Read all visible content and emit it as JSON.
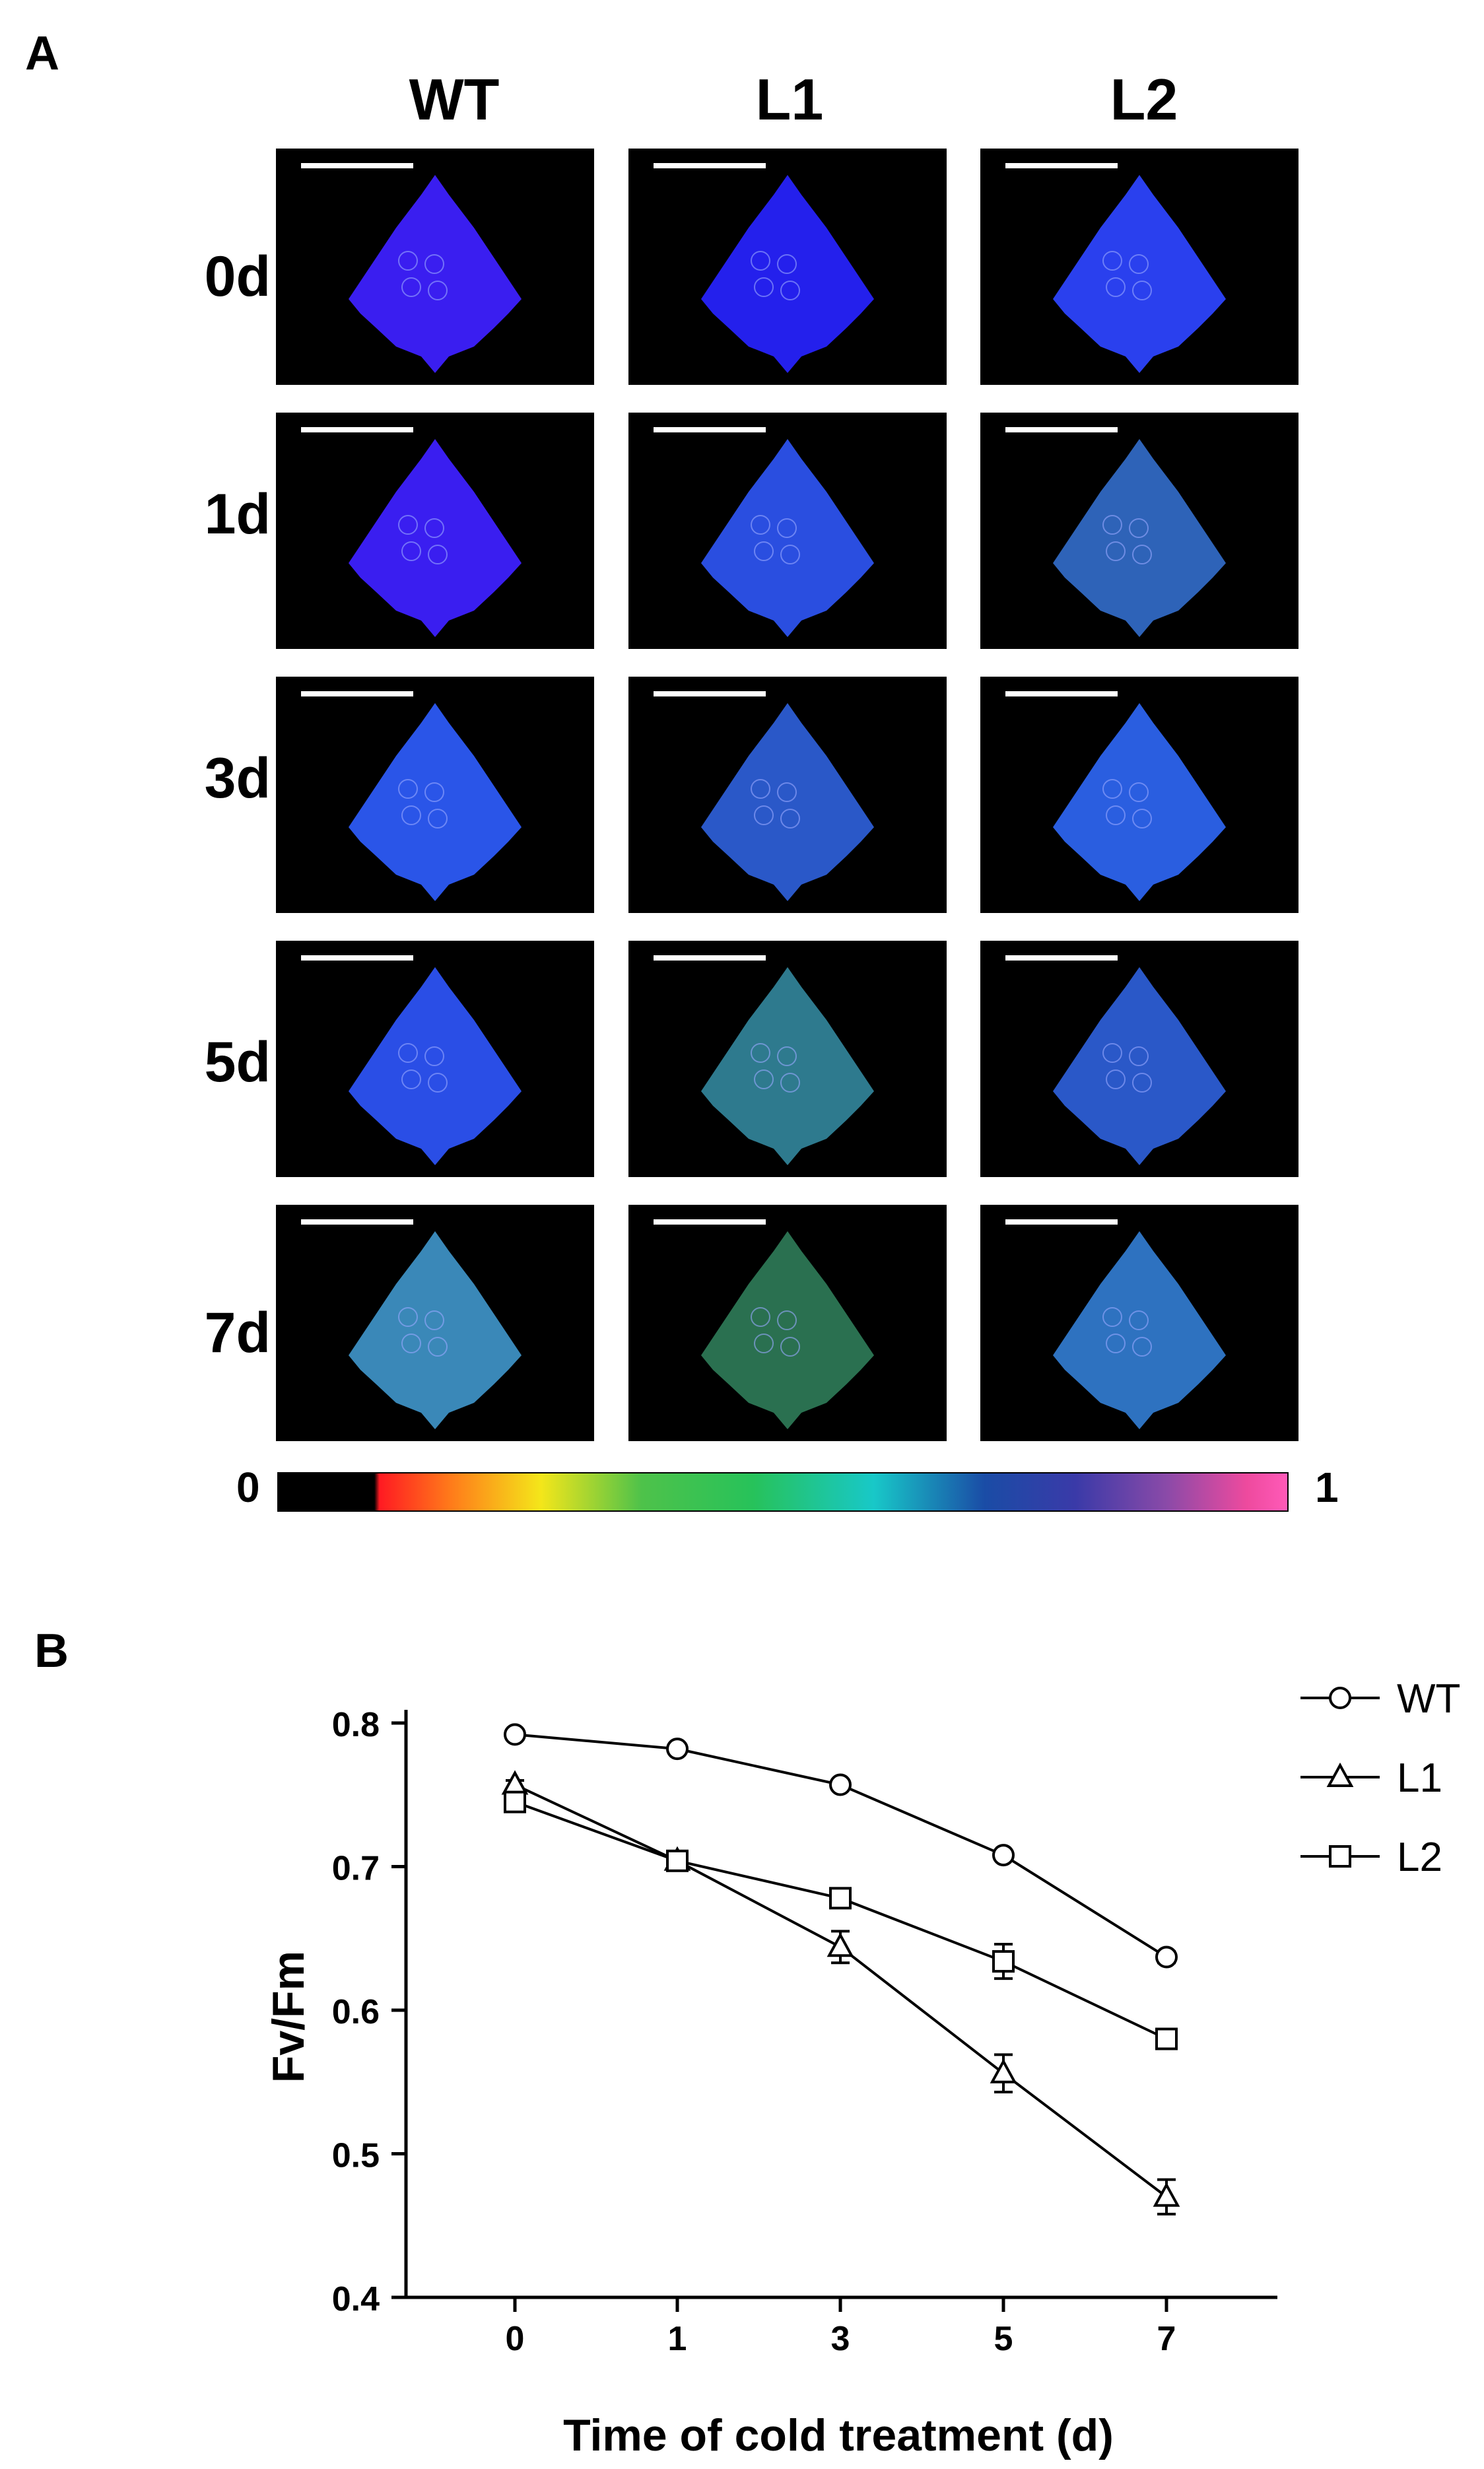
{
  "panel_a": {
    "label": "A",
    "columns": [
      "WT",
      "L1",
      "L2"
    ],
    "rows": [
      "0d",
      "1d",
      "3d",
      "5d",
      "7d"
    ],
    "colorbar": {
      "min_label": "0",
      "max_label": "1"
    }
  },
  "panel_b": {
    "label": "B"
  },
  "chart_data": {
    "type": "line",
    "x": [
      0,
      1,
      3,
      5,
      7
    ],
    "xlabel": "Time of cold treatment (d)",
    "ylabel": "Fv/Fm",
    "xticks": [
      "0",
      "1",
      "3",
      "5",
      "7"
    ],
    "yticks": [
      "0.4",
      "0.5",
      "0.6",
      "0.7",
      "0.8"
    ],
    "ylim": [
      0.4,
      0.8
    ],
    "grid": false,
    "legend": "top-right",
    "series": [
      {
        "name": "WT",
        "marker": "circle",
        "values": [
          0.792,
          0.782,
          0.757,
          0.708,
          0.637
        ],
        "errors": [
          0.002,
          0.003,
          0.003,
          0.003,
          0.004
        ]
      },
      {
        "name": "L1",
        "marker": "triangle",
        "values": [
          0.757,
          0.704,
          0.644,
          0.556,
          0.47
        ],
        "errors": [
          0.003,
          0.003,
          0.011,
          0.013,
          0.012
        ]
      },
      {
        "name": "L2",
        "marker": "square",
        "values": [
          0.745,
          0.704,
          0.678,
          0.634,
          0.58
        ],
        "errors": [
          0.003,
          0.003,
          0.006,
          0.012,
          0.005
        ]
      }
    ]
  }
}
